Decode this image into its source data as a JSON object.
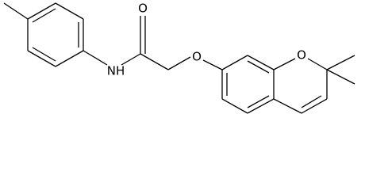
{
  "atoms": [
    {
      "label": "O"
    },
    {
      "label": "NH"
    },
    {
      "label": "O"
    },
    {
      "label": "O"
    }
  ]
}
